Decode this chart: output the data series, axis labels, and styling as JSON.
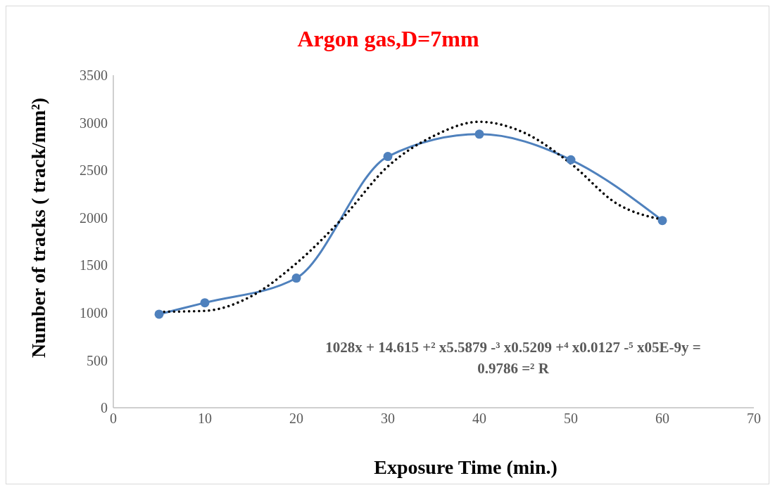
{
  "chart_data": {
    "type": "line",
    "title": "Argon gas,D=7mm",
    "xlabel": "Exposure Time (min.)",
    "ylabel": "Number of tracks ( track/mm²)",
    "x": [
      5,
      10,
      20,
      30,
      40,
      50,
      60
    ],
    "series": [
      {
        "color": "#4f81bd",
        "values": [
          985,
          1105,
          1365,
          2645,
          2880,
          2610,
          1970
        ],
        "marker": "circle",
        "line_style": "solid"
      },
      {
        "type": "line",
        "color": "#000000",
        "x": [
          5,
          10,
          15,
          20,
          25,
          30,
          35,
          40,
          45,
          50,
          55,
          60
        ],
        "values": [
          1010,
          1020,
          1170,
          1520,
          1990,
          2540,
          2860,
          3010,
          2890,
          2570,
          2150,
          1980
        ],
        "marker": "none",
        "line_style": "dotted"
      }
    ],
    "annotations": [
      "1028x + 14.615 +² x5.5879 -³ x0.5209 +⁴ x0.0127 -⁵ x05E-9y =",
      "0.9786 =² R"
    ],
    "xlim": [
      0,
      70
    ],
    "xticks": [
      0,
      10,
      20,
      30,
      40,
      50,
      60,
      70
    ],
    "ylim": [
      0,
      3500
    ],
    "yticks": [
      0,
      500,
      1000,
      1500,
      2000,
      2500,
      3000,
      3500
    ]
  }
}
